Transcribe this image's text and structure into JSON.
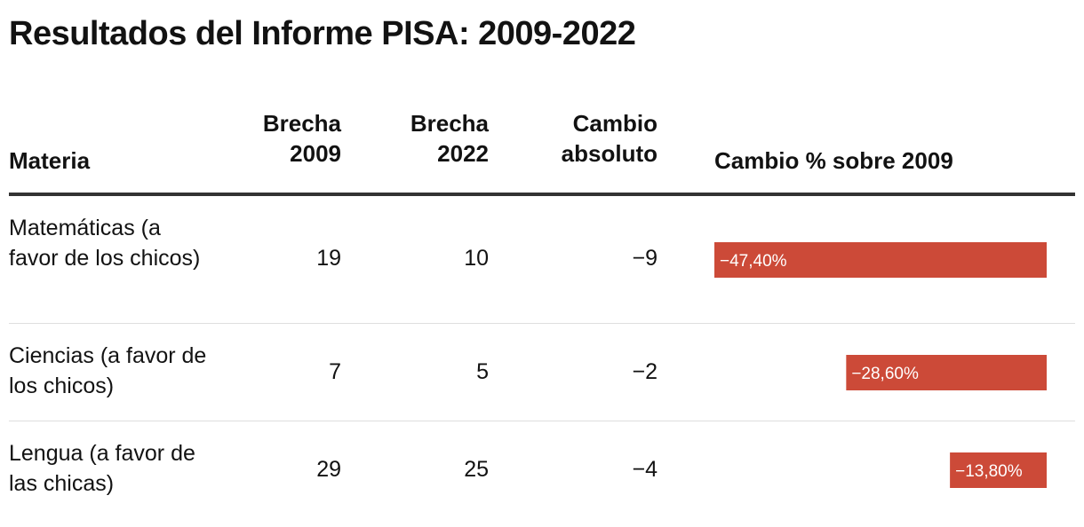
{
  "title": "Resultados del Informe PISA: 2009-2022",
  "columns": {
    "materia": "Materia",
    "brecha2009": [
      "Brecha",
      "2009"
    ],
    "brecha2022": [
      "Brecha",
      "2022"
    ],
    "cambio_abs": [
      "Cambio",
      "absoluto"
    ],
    "cambio_pct": "Cambio % sobre 2009"
  },
  "rows": [
    {
      "materia": "Matemáticas (a favor de los chicos)",
      "brecha2009": "19",
      "brecha2022": "10",
      "cambio_abs": "−9",
      "cambio_pct_label": "−47,40%"
    },
    {
      "materia": "Ciencias (a favor de los chicos)",
      "brecha2009": "7",
      "brecha2022": "5",
      "cambio_abs": "−2",
      "cambio_pct_label": "−28,60%"
    },
    {
      "materia": "Lengua (a favor de las chicas)",
      "brecha2009": "29",
      "brecha2022": "25",
      "cambio_abs": "−4",
      "cambio_pct_label": "−13,80%"
    }
  ],
  "chart_data": {
    "type": "bar",
    "categories": [
      "Matemáticas (a favor de los chicos)",
      "Ciencias (a favor de los chicos)",
      "Lengua (a favor de las chicas)"
    ],
    "values": [
      -47.4,
      -28.6,
      -13.8
    ],
    "orientation": "horizontal",
    "direction": "negative-leftward",
    "bar_color": "#cc4a38",
    "title": "Resultados del Informe PISA: 2009-2022"
  }
}
